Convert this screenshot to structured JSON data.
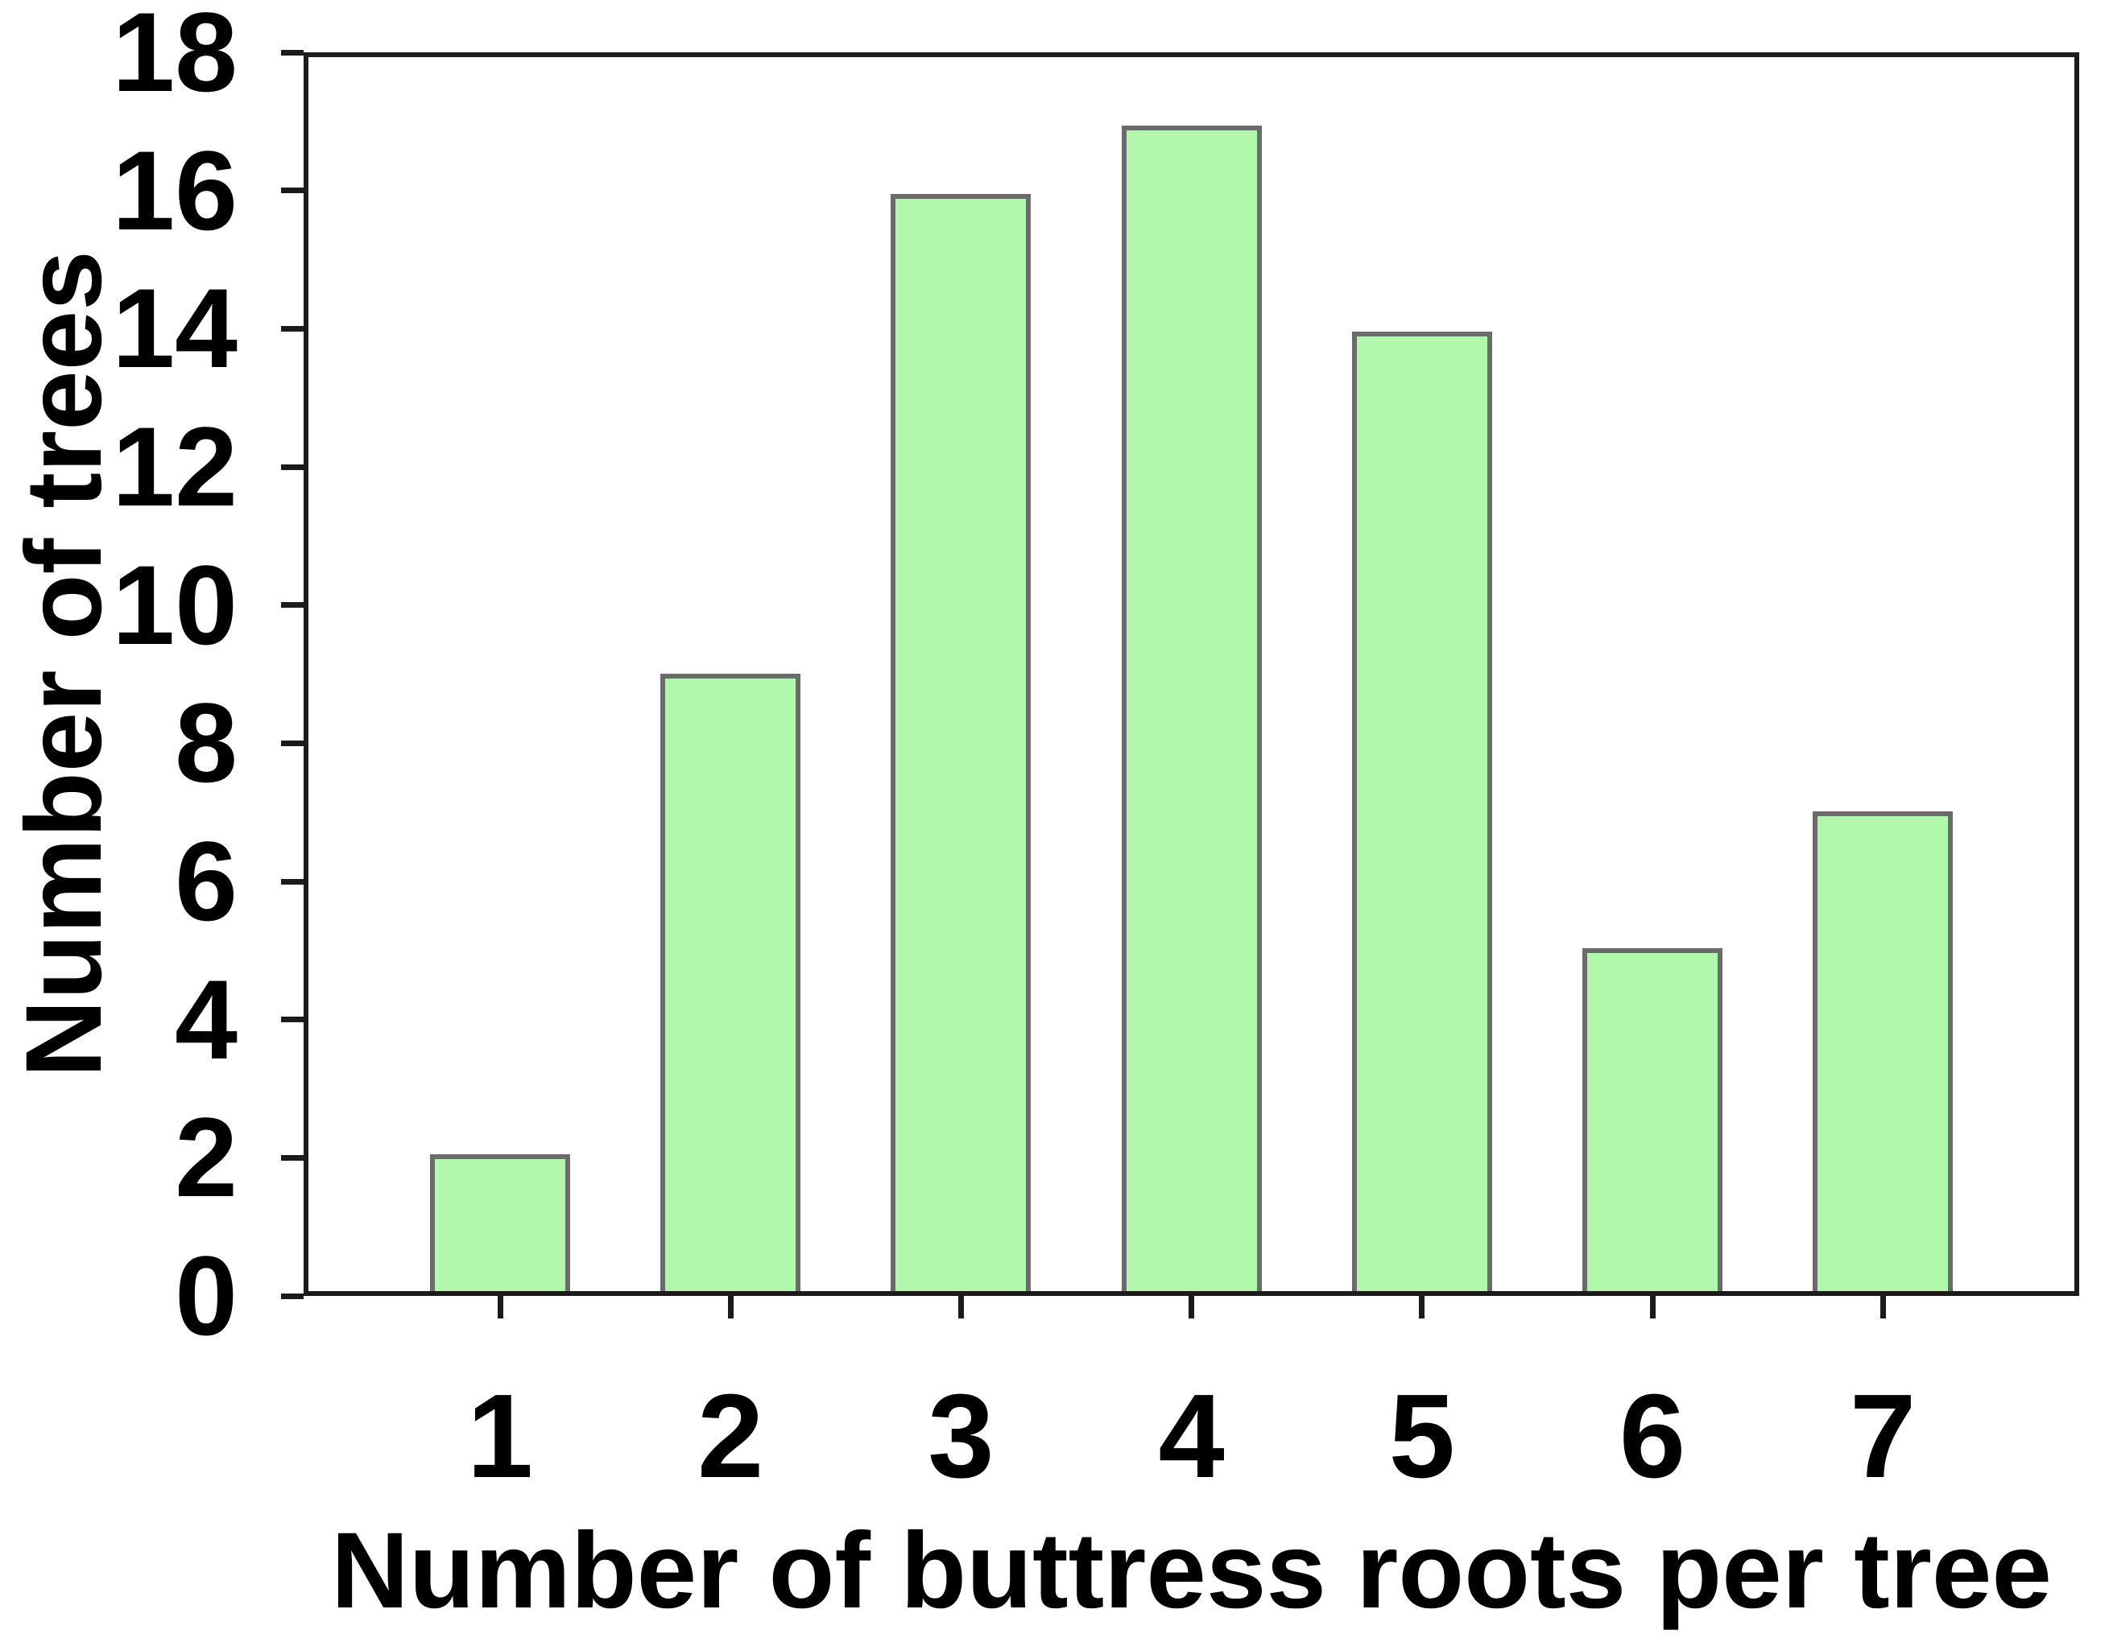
{
  "chart_data": {
    "type": "bar",
    "title": "",
    "xlabel": "Number of buttress roots per tree",
    "ylabel": "Number of trees",
    "categories": [
      "1",
      "2",
      "3",
      "4",
      "5",
      "6",
      "7"
    ],
    "values": [
      2,
      9,
      16,
      17,
      14,
      5,
      7
    ],
    "series_name": "Number of trees",
    "ylim": [
      0,
      18
    ],
    "yticks": [
      0,
      2,
      4,
      6,
      8,
      10,
      12,
      14,
      16,
      18
    ],
    "grid": false,
    "legend_position": "none",
    "bar_fill_color": "#b1f7ac",
    "bar_border_color": "#6b6b6b",
    "axis_color": "#1b1b1b",
    "text_color": "#000000",
    "background_color": "#ffffff"
  }
}
